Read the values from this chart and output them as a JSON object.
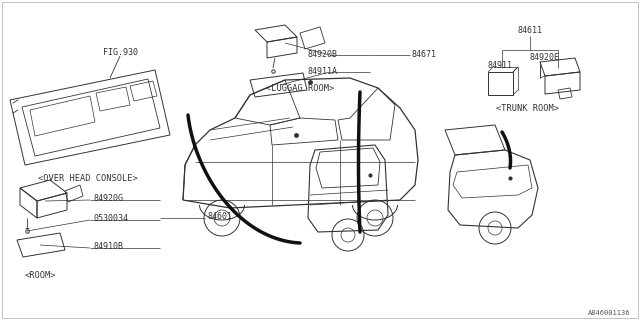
{
  "bg_color": "#ffffff",
  "fig_id": "A846001136",
  "line_color": "#333333",
  "thick_line_color": "#111111",
  "font_size": 6.0,
  "label_font_size": 6.2,
  "parts": {
    "overhead_console_label": "FIG.930",
    "overhead_console_section": "<OVER HEAD CONSOLE>",
    "room_section": "<ROOM>",
    "luggage_section": "<LUGGAG ROOM>",
    "trunk_section": "<TRUNK ROOM>",
    "p84920B": "84920B",
    "p84671": "84671",
    "p84911A": "84911A",
    "p84920G": "84920G",
    "p0530034": "0530034",
    "p84910B": "84910B",
    "p84601": "84601",
    "p84611": "84611",
    "p84920E": "84920E",
    "p84911": "84911"
  }
}
